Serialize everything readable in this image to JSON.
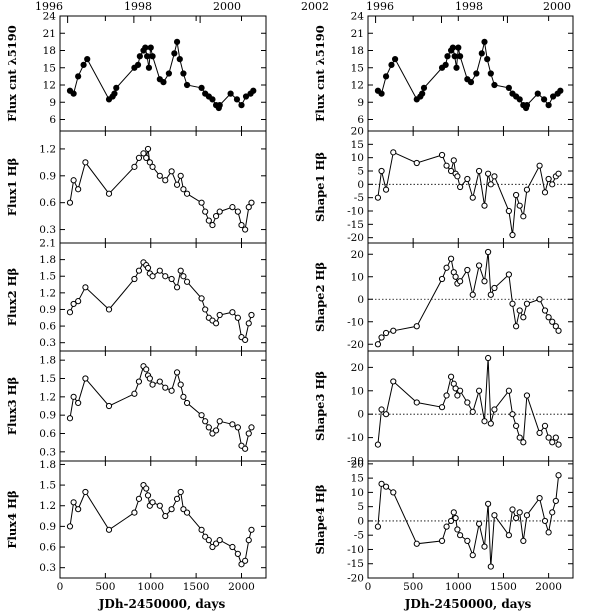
{
  "chart_data": {
    "type": "line",
    "x_axis_label": "JDh-2450000, days",
    "top_axis_ticks": [
      "1996",
      "1998",
      "2000",
      "2002"
    ],
    "top_axis_tick_values": [
      84,
      814,
      1544,
      2275
    ],
    "xlim": [
      0,
      2270
    ],
    "x_ticks": [
      0,
      500,
      1000,
      1500,
      2000
    ],
    "panels": [
      {
        "ylabel": "Flux cnt λ5190",
        "ylim": [
          4,
          24
        ],
        "y_ticks": [
          6,
          9,
          12,
          15,
          18,
          21,
          24
        ],
        "style": "filled",
        "reference_line": null,
        "x": [
          110,
          150,
          200,
          260,
          300,
          540,
          580,
          600,
          620,
          820,
          860,
          880,
          920,
          940,
          960,
          980,
          1000,
          1020,
          1100,
          1140,
          1200,
          1260,
          1290,
          1320,
          1360,
          1400,
          1560,
          1600,
          1640,
          1680,
          1720,
          1750,
          1760,
          1880,
          1950,
          2000,
          2050,
          2100,
          2130
        ],
        "y": [
          11,
          10.5,
          13.5,
          15.5,
          16.5,
          9.5,
          10,
          10.5,
          11.5,
          15,
          15.5,
          17,
          18,
          18.5,
          17,
          15,
          18.5,
          17,
          13,
          12.5,
          14,
          17.5,
          19.5,
          16.5,
          14,
          12,
          11.5,
          10.5,
          10,
          9.5,
          8.5,
          8,
          8.5,
          10.5,
          9.5,
          8.5,
          10,
          10.5,
          11
        ]
      },
      {
        "ylabel": "Flux1 Hβ",
        "ylim": [
          0.15,
          1.4
        ],
        "y_ticks": [
          0.3,
          0.6,
          0.9,
          1.2
        ],
        "style": "open",
        "reference_line": null,
        "x": [
          110,
          150,
          200,
          280,
          540,
          820,
          870,
          920,
          950,
          970,
          990,
          1020,
          1100,
          1160,
          1230,
          1290,
          1330,
          1360,
          1400,
          1560,
          1600,
          1640,
          1680,
          1720,
          1760,
          1900,
          1960,
          2000,
          2040,
          2080,
          2110
        ],
        "y": [
          0.6,
          0.85,
          0.75,
          1.05,
          0.7,
          1.0,
          1.1,
          1.15,
          1.1,
          1.2,
          1.05,
          1.0,
          0.9,
          0.85,
          0.95,
          0.8,
          0.9,
          0.75,
          0.7,
          0.6,
          0.5,
          0.4,
          0.35,
          0.45,
          0.5,
          0.55,
          0.5,
          0.35,
          0.3,
          0.55,
          0.6
        ]
      },
      {
        "ylabel": "Flux2 Hβ",
        "ylim": [
          0.15,
          2.1
        ],
        "y_ticks": [
          0.3,
          0.6,
          0.9,
          1.2,
          1.5,
          1.8,
          2.1
        ],
        "style": "open",
        "reference_line": null,
        "x": [
          110,
          150,
          200,
          280,
          540,
          820,
          870,
          920,
          950,
          970,
          990,
          1020,
          1100,
          1160,
          1230,
          1290,
          1330,
          1360,
          1400,
          1560,
          1600,
          1640,
          1680,
          1720,
          1760,
          1900,
          1960,
          2000,
          2040,
          2080,
          2110
        ],
        "y": [
          0.85,
          1.0,
          1.05,
          1.3,
          0.9,
          1.45,
          1.6,
          1.75,
          1.7,
          1.65,
          1.55,
          1.5,
          1.6,
          1.5,
          1.45,
          1.3,
          1.6,
          1.5,
          1.4,
          1.1,
          0.9,
          0.75,
          0.7,
          0.65,
          0.8,
          0.85,
          0.75,
          0.4,
          0.35,
          0.65,
          0.8
        ]
      },
      {
        "ylabel": "Flux3 Hβ",
        "ylim": [
          0.15,
          1.95
        ],
        "y_ticks": [
          0.3,
          0.6,
          0.9,
          1.2,
          1.5,
          1.8
        ],
        "style": "open",
        "reference_line": null,
        "x": [
          110,
          150,
          200,
          280,
          540,
          820,
          870,
          920,
          950,
          970,
          990,
          1020,
          1100,
          1160,
          1230,
          1290,
          1330,
          1360,
          1400,
          1560,
          1600,
          1640,
          1680,
          1720,
          1760,
          1900,
          1960,
          2000,
          2040,
          2080,
          2110
        ],
        "y": [
          0.85,
          1.2,
          1.1,
          1.5,
          1.05,
          1.25,
          1.45,
          1.7,
          1.65,
          1.55,
          1.5,
          1.4,
          1.45,
          1.35,
          1.3,
          1.6,
          1.4,
          1.2,
          1.1,
          0.9,
          0.8,
          0.7,
          0.6,
          0.65,
          0.8,
          0.75,
          0.7,
          0.4,
          0.35,
          0.6,
          0.7
        ]
      },
      {
        "ylabel": "Flux4 Hβ",
        "ylim": [
          0.15,
          1.85
        ],
        "y_ticks": [
          0.3,
          0.6,
          0.9,
          1.2,
          1.5,
          1.8
        ],
        "style": "open",
        "reference_line": null,
        "x": [
          110,
          150,
          200,
          280,
          540,
          820,
          870,
          920,
          950,
          970,
          990,
          1020,
          1100,
          1160,
          1230,
          1290,
          1330,
          1360,
          1400,
          1560,
          1600,
          1640,
          1680,
          1720,
          1760,
          1900,
          1960,
          2000,
          2040,
          2080,
          2110
        ],
        "y": [
          0.9,
          1.25,
          1.15,
          1.4,
          0.85,
          1.1,
          1.3,
          1.5,
          1.45,
          1.35,
          1.2,
          1.25,
          1.2,
          1.05,
          1.15,
          1.3,
          1.4,
          1.15,
          1.1,
          0.85,
          0.75,
          0.7,
          0.6,
          0.65,
          0.7,
          0.6,
          0.5,
          0.35,
          0.4,
          0.7,
          0.85
        ]
      },
      {
        "ylabel": "Flux cnt λ5190",
        "ylim": [
          4,
          24
        ],
        "y_ticks": [
          6,
          9,
          12,
          15,
          18,
          21,
          24
        ],
        "style": "filled",
        "reference_line": null,
        "x": [
          110,
          150,
          200,
          260,
          300,
          540,
          580,
          600,
          620,
          820,
          860,
          880,
          920,
          940,
          960,
          980,
          1000,
          1020,
          1100,
          1140,
          1200,
          1260,
          1290,
          1320,
          1360,
          1400,
          1560,
          1600,
          1640,
          1680,
          1720,
          1750,
          1760,
          1880,
          1950,
          2000,
          2050,
          2100,
          2130
        ],
        "y": [
          11,
          10.5,
          13.5,
          15.5,
          16.5,
          9.5,
          10,
          10.5,
          11.5,
          15,
          15.5,
          17,
          18,
          18.5,
          17,
          15,
          18.5,
          17,
          13,
          12.5,
          14,
          17.5,
          19.5,
          16.5,
          14,
          12,
          11.5,
          10.5,
          10,
          9.5,
          8.5,
          8,
          8.5,
          10.5,
          9.5,
          8.5,
          10,
          10.5,
          11
        ]
      },
      {
        "ylabel": "Shape1 Hβ",
        "ylim": [
          -22,
          20
        ],
        "y_ticks": [
          -20,
          -15,
          -10,
          -5,
          0,
          5,
          10,
          15,
          20
        ],
        "style": "open",
        "reference_line": 0,
        "x": [
          110,
          150,
          200,
          280,
          540,
          820,
          870,
          920,
          950,
          970,
          990,
          1020,
          1100,
          1160,
          1230,
          1290,
          1330,
          1360,
          1400,
          1560,
          1600,
          1640,
          1680,
          1720,
          1760,
          1900,
          1960,
          2000,
          2040,
          2080,
          2110
        ],
        "y": [
          -5,
          5,
          -2,
          12,
          8,
          11,
          7,
          5,
          9,
          4,
          3,
          -1,
          2,
          -5,
          5,
          -8,
          4,
          0,
          3,
          -10,
          -19,
          -4,
          -8,
          -12,
          -2,
          7,
          -3,
          2,
          0,
          3,
          4
        ]
      },
      {
        "ylabel": "Shape2 Hβ",
        "ylim": [
          -23,
          25
        ],
        "y_ticks": [
          -20,
          -10,
          0,
          10,
          20
        ],
        "style": "open",
        "reference_line": 0,
        "x": [
          110,
          150,
          200,
          280,
          540,
          820,
          870,
          920,
          950,
          970,
          990,
          1020,
          1100,
          1160,
          1230,
          1290,
          1330,
          1360,
          1400,
          1560,
          1600,
          1640,
          1680,
          1720,
          1760,
          1900,
          1960,
          2000,
          2040,
          2080,
          2110
        ],
        "y": [
          -20,
          -17,
          -15,
          -14,
          -12,
          9,
          14,
          18,
          12,
          10,
          7,
          8,
          13,
          2,
          15,
          8,
          21,
          2,
          5,
          11,
          -2,
          -12,
          -5,
          -8,
          -2,
          0,
          -5,
          -8,
          -10,
          -12,
          -14
        ]
      },
      {
        "ylabel": "Shape3 Hβ",
        "ylim": [
          -20,
          27
        ],
        "y_ticks": [
          -20,
          -10,
          0,
          10,
          20
        ],
        "style": "open",
        "reference_line": 0,
        "x": [
          110,
          150,
          200,
          280,
          540,
          820,
          870,
          920,
          950,
          970,
          990,
          1020,
          1100,
          1160,
          1230,
          1290,
          1330,
          1360,
          1400,
          1560,
          1600,
          1640,
          1680,
          1720,
          1760,
          1900,
          1960,
          2000,
          2040,
          2080,
          2110
        ],
        "y": [
          -13,
          2,
          0,
          14,
          5,
          3,
          8,
          16,
          13,
          11,
          8,
          10,
          5,
          1,
          10,
          -3,
          24,
          -4,
          2,
          10,
          0,
          -5,
          -10,
          -12,
          8,
          -8,
          -5,
          -10,
          -12,
          -10,
          -13
        ]
      },
      {
        "ylabel": "Shape4 Hβ",
        "ylim": [
          -20,
          21
        ],
        "y_ticks": [
          -20,
          -15,
          -10,
          -5,
          0,
          5,
          10,
          15,
          20
        ],
        "style": "open",
        "reference_line": 0,
        "x": [
          110,
          150,
          200,
          280,
          540,
          820,
          870,
          920,
          950,
          970,
          990,
          1020,
          1100,
          1160,
          1230,
          1290,
          1330,
          1360,
          1400,
          1560,
          1600,
          1640,
          1680,
          1720,
          1760,
          1900,
          1960,
          2000,
          2040,
          2080,
          2110
        ],
        "y": [
          -2,
          13,
          12,
          10,
          -8,
          -7,
          -2,
          0,
          3,
          1,
          -3,
          -5,
          -7,
          -12,
          -1,
          -9,
          6,
          -16,
          2,
          -5,
          4,
          1,
          3,
          -7,
          2,
          8,
          0,
          -4,
          3,
          7,
          16
        ]
      }
    ]
  }
}
